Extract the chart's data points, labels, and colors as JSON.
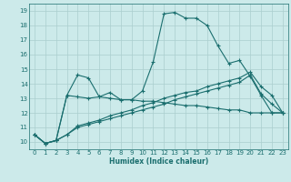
{
  "xlabel": "Humidex (Indice chaleur)",
  "background_color": "#cceaea",
  "grid_color": "#aacece",
  "line_color": "#1a6e6e",
  "xlim": [
    -0.5,
    23.5
  ],
  "ylim": [
    9.5,
    19.5
  ],
  "xticks": [
    0,
    1,
    2,
    3,
    4,
    5,
    6,
    7,
    8,
    9,
    10,
    11,
    12,
    13,
    14,
    15,
    16,
    17,
    18,
    19,
    20,
    21,
    22,
    23
  ],
  "yticks": [
    10,
    11,
    12,
    13,
    14,
    15,
    16,
    17,
    18,
    19
  ],
  "series": [
    {
      "x": [
        0,
        1,
        2,
        3,
        4,
        5,
        6,
        7,
        8,
        9,
        10,
        11,
        12,
        13,
        14,
        15,
        16,
        17,
        18,
        19,
        20,
        21,
        22,
        23
      ],
      "y": [
        10.5,
        9.9,
        10.1,
        13.2,
        14.6,
        14.4,
        13.1,
        13.4,
        12.9,
        12.9,
        13.5,
        15.5,
        18.8,
        18.9,
        18.5,
        18.5,
        18.0,
        16.6,
        15.4,
        15.6,
        14.5,
        13.2,
        12.0,
        12.0
      ]
    },
    {
      "x": [
        0,
        1,
        2,
        3,
        4,
        5,
        6,
        7,
        8,
        9,
        10,
        11,
        12,
        13,
        14,
        15,
        16,
        17,
        18,
        19,
        20,
        21,
        22,
        23
      ],
      "y": [
        10.5,
        9.9,
        10.1,
        13.2,
        13.1,
        13.0,
        13.1,
        13.0,
        12.9,
        12.9,
        12.8,
        12.8,
        12.7,
        12.6,
        12.5,
        12.5,
        12.4,
        12.3,
        12.2,
        12.2,
        12.0,
        12.0,
        12.0,
        12.0
      ]
    },
    {
      "x": [
        0,
        1,
        2,
        3,
        4,
        5,
        6,
        7,
        8,
        9,
        10,
        11,
        12,
        13,
        14,
        15,
        16,
        17,
        18,
        19,
        20,
        21,
        22,
        23
      ],
      "y": [
        10.5,
        9.9,
        10.1,
        10.5,
        11.0,
        11.2,
        11.4,
        11.6,
        11.8,
        12.0,
        12.2,
        12.4,
        12.6,
        12.9,
        13.1,
        13.3,
        13.5,
        13.7,
        13.9,
        14.1,
        14.6,
        13.3,
        12.6,
        12.0
      ]
    },
    {
      "x": [
        0,
        1,
        2,
        3,
        4,
        5,
        6,
        7,
        8,
        9,
        10,
        11,
        12,
        13,
        14,
        15,
        16,
        17,
        18,
        19,
        20,
        21,
        22,
        23
      ],
      "y": [
        10.5,
        9.9,
        10.1,
        10.5,
        11.1,
        11.3,
        11.5,
        11.8,
        12.0,
        12.2,
        12.5,
        12.7,
        13.0,
        13.2,
        13.4,
        13.5,
        13.8,
        14.0,
        14.2,
        14.4,
        14.8,
        13.8,
        13.2,
        12.0
      ]
    }
  ]
}
